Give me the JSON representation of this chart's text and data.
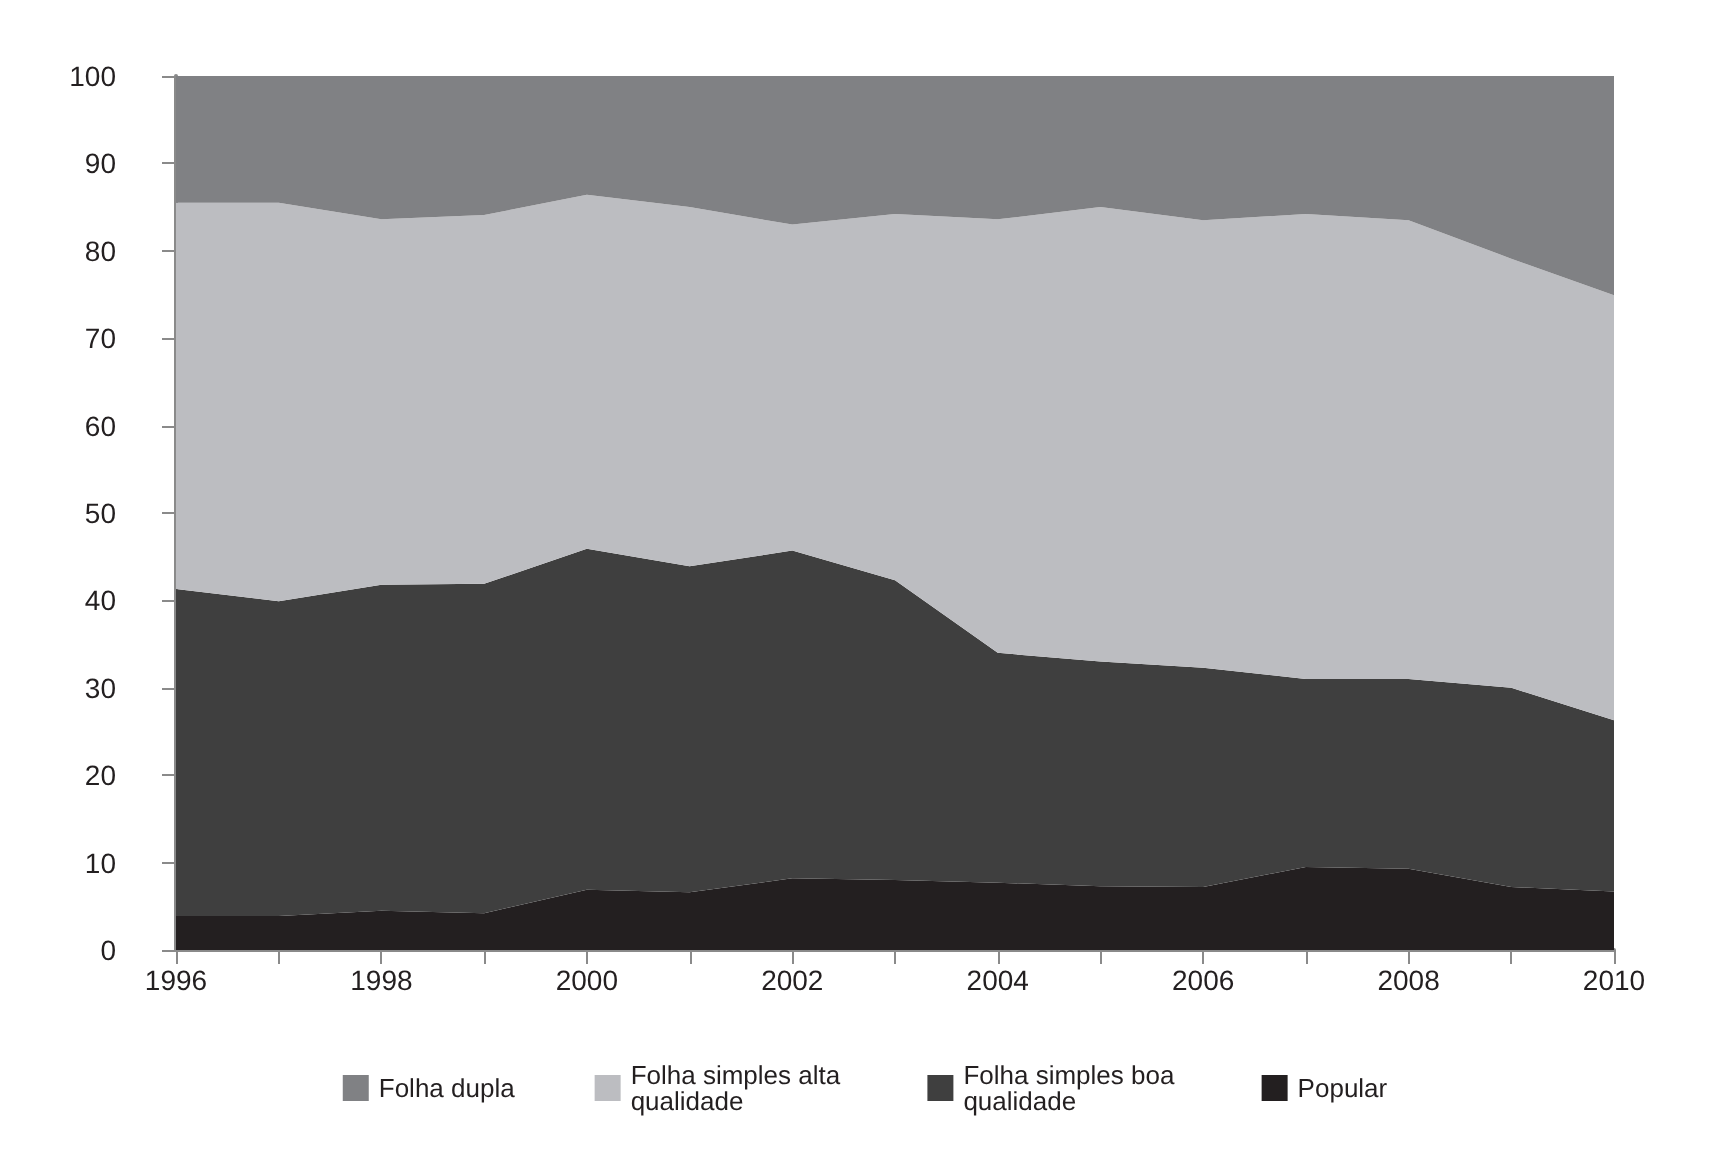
{
  "chart_data": {
    "type": "area",
    "stacked": true,
    "categories": [
      "1996",
      null,
      "1998",
      null,
      "2000",
      null,
      "2002",
      null,
      "2004",
      null,
      "2006",
      null,
      "2008",
      null,
      "2010"
    ],
    "series": [
      {
        "name": "Popular",
        "color": "#231f20",
        "values": [
          3.9,
          3.9,
          4.5,
          4.2,
          6.9,
          6.6,
          8.2,
          8.0,
          7.7,
          7.3,
          7.2,
          9.5,
          9.3,
          7.2,
          6.7
        ]
      },
      {
        "name": "Folha simples boa qualidade",
        "color": "#3f3f3f",
        "values": [
          37.4,
          36.0,
          37.3,
          37.7,
          39.0,
          37.3,
          37.5,
          34.3,
          26.3,
          25.7,
          25.1,
          21.5,
          21.7,
          22.8,
          19.6
        ]
      },
      {
        "name": "Folha simples alta qualidade",
        "color": "#bcbdc1",
        "values": [
          44.2,
          45.6,
          41.8,
          42.2,
          40.5,
          41.1,
          37.3,
          41.9,
          49.6,
          52.0,
          51.2,
          53.2,
          52.5,
          49.1,
          48.6
        ]
      },
      {
        "name": "Folha dupla",
        "color": "#808184",
        "values": [
          14.5,
          14.5,
          16.4,
          15.9,
          13.6,
          15.0,
          17.0,
          15.8,
          16.4,
          15.0,
          16.5,
          15.8,
          16.5,
          20.9,
          25.1
        ]
      }
    ],
    "ylim": [
      0,
      100
    ],
    "yticks": [
      0,
      10,
      20,
      30,
      40,
      50,
      60,
      70,
      80,
      90,
      100
    ],
    "grid": false,
    "legend": "bottom",
    "marker": "none"
  }
}
